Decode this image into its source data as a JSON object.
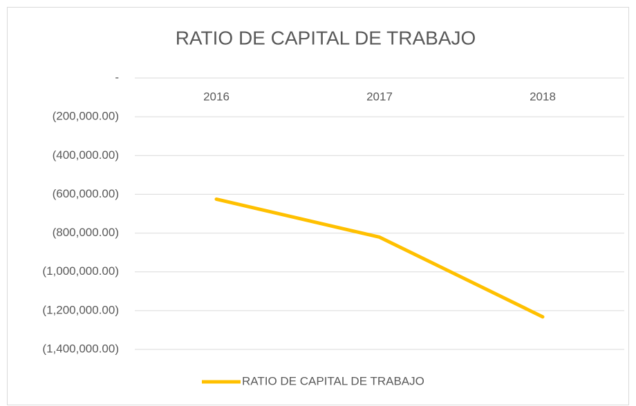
{
  "chart_data": {
    "type": "line",
    "title": "RATIO DE CAPITAL DE TRABAJO",
    "categories": [
      "2016",
      "2017",
      "2018"
    ],
    "series": [
      {
        "name": "RATIO DE CAPITAL DE TRABAJO",
        "color": "#ffc000",
        "values": [
          -625000,
          -821000,
          -1232000
        ]
      }
    ],
    "ylim": [
      -1400000,
      0
    ],
    "yticks": [
      {
        "value": 0,
        "label": "-"
      },
      {
        "value": -200000,
        "label": "(200,000.00)"
      },
      {
        "value": -400000,
        "label": "(400,000.00)"
      },
      {
        "value": -600000,
        "label": "(600,000.00)"
      },
      {
        "value": -800000,
        "label": "(800,000.00)"
      },
      {
        "value": -1000000,
        "label": "(1,000,000.00)"
      },
      {
        "value": -1200000,
        "label": "(1,200,000.00)"
      },
      {
        "value": -1400000,
        "label": "(1,400,000.00)"
      }
    ],
    "grid": true,
    "legend": "bottom"
  }
}
